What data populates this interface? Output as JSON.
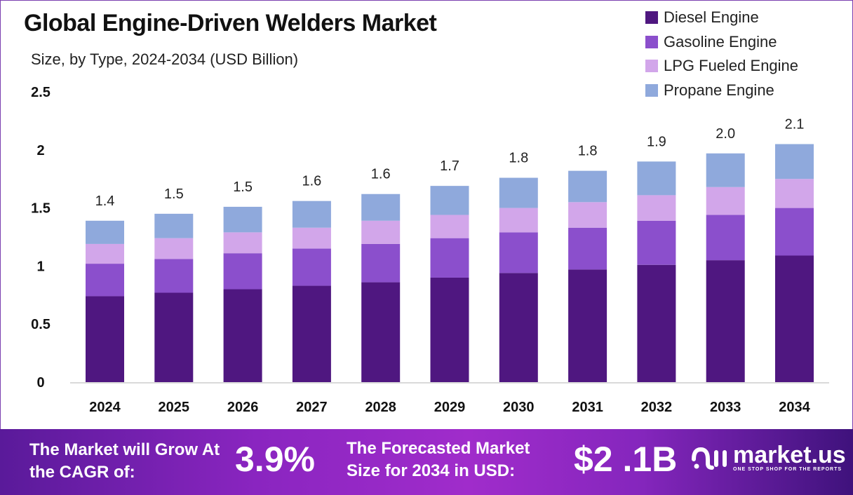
{
  "chart_data": {
    "type": "bar",
    "stacked": true,
    "title": "Global Engine-Driven Welders Market",
    "subtitle": "Size, by Type, 2024-2034 (USD Billion)",
    "categories": [
      "2024",
      "2025",
      "2026",
      "2027",
      "2028",
      "2029",
      "2030",
      "2031",
      "2032",
      "2033",
      "2034"
    ],
    "series": [
      {
        "name": "Diesel Engine",
        "color": "#4f1780",
        "values": [
          0.74,
          0.77,
          0.8,
          0.83,
          0.86,
          0.9,
          0.94,
          0.97,
          1.01,
          1.05,
          1.09
        ]
      },
      {
        "name": "Gasoline Engine",
        "color": "#8b4fcc",
        "values": [
          0.28,
          0.29,
          0.31,
          0.32,
          0.33,
          0.34,
          0.35,
          0.36,
          0.38,
          0.39,
          0.41
        ]
      },
      {
        "name": "LPG Fueled Engine",
        "color": "#d2a6ea",
        "values": [
          0.17,
          0.18,
          0.18,
          0.18,
          0.2,
          0.2,
          0.21,
          0.22,
          0.22,
          0.24,
          0.25
        ]
      },
      {
        "name": "Propane Engine",
        "color": "#8fa9dc",
        "values": [
          0.2,
          0.21,
          0.22,
          0.23,
          0.23,
          0.25,
          0.26,
          0.27,
          0.29,
          0.29,
          0.3
        ]
      }
    ],
    "totals_labels": [
      "1.4",
      "1.5",
      "1.5",
      "1.6",
      "1.6",
      "1.7",
      "1.8",
      "1.8",
      "1.9",
      "2.0",
      "2.1"
    ],
    "yticks": [
      "0",
      "0.5",
      "1",
      "1.5",
      "2",
      "2.5"
    ],
    "ylim": [
      0,
      2.5
    ],
    "xlabel": "",
    "ylabel": "",
    "grid": false,
    "legend": "top-right"
  },
  "footer": {
    "cagr_label": "The Market will Grow At the CAGR of:",
    "cagr_value": "3.9%",
    "forecast_label": "The Forecasted Market Size for 2034 in USD:",
    "forecast_value": "$2 .1B",
    "logo_name": "market.us",
    "logo_tagline": "ONE STOP SHOP FOR THE REPORTS"
  }
}
